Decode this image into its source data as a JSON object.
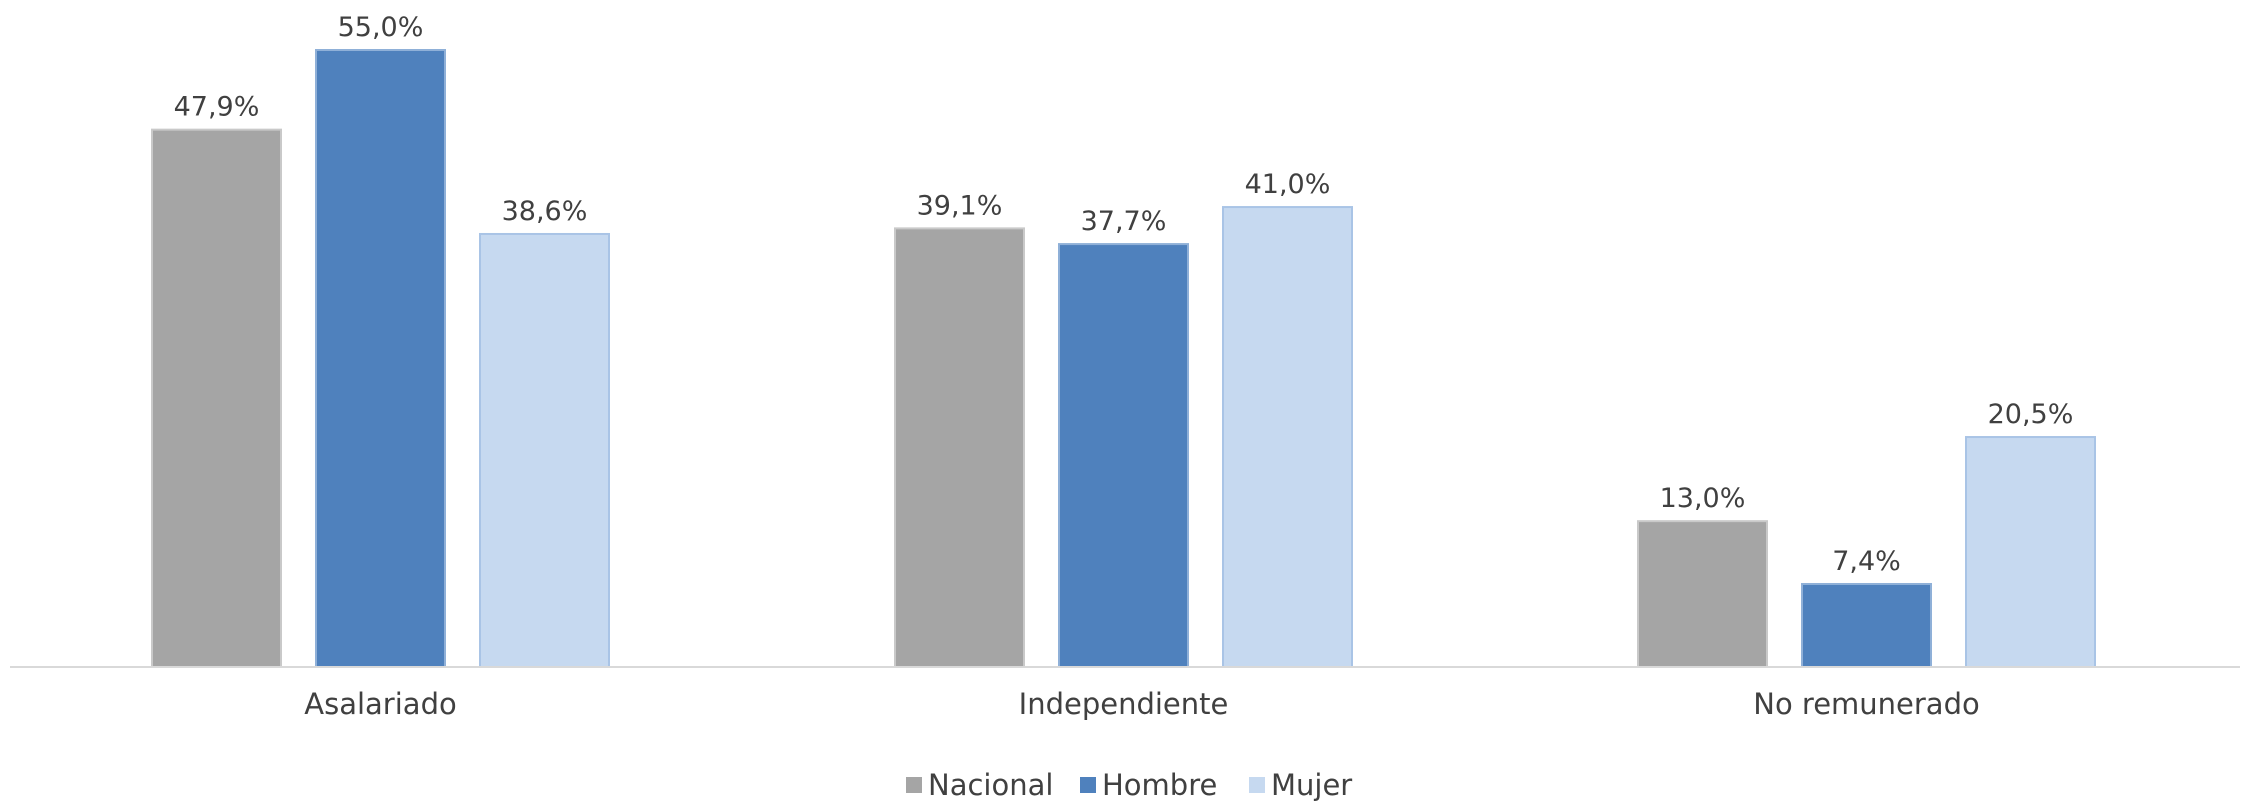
{
  "chart_data": {
    "type": "bar",
    "categories": [
      "Asalariado",
      "Independiente",
      "No remunerado"
    ],
    "series": [
      {
        "name": "Nacional",
        "values": [
          47.9,
          39.1,
          13.0
        ],
        "labels": [
          "47,9%",
          "39,1%",
          "13,0%"
        ],
        "color": "#a5a5a5",
        "stroke": "#c9c9c9"
      },
      {
        "name": "Hombre",
        "values": [
          55.0,
          37.7,
          7.4
        ],
        "labels": [
          "55,0%",
          "37,7%",
          "7,4%"
        ],
        "color": "#4f81bd",
        "stroke": "#8fb0d8"
      },
      {
        "name": "Mujer",
        "values": [
          38.6,
          41.0,
          20.5
        ],
        "labels": [
          "38,6%",
          "41,0%",
          "20,5%"
        ],
        "color": "#c6d9f0",
        "stroke": "#a9c4e6"
      }
    ],
    "ylim": [
      0,
      55
    ],
    "grid": false,
    "legend": "bottom",
    "axis_color": "#d9d9d9"
  }
}
